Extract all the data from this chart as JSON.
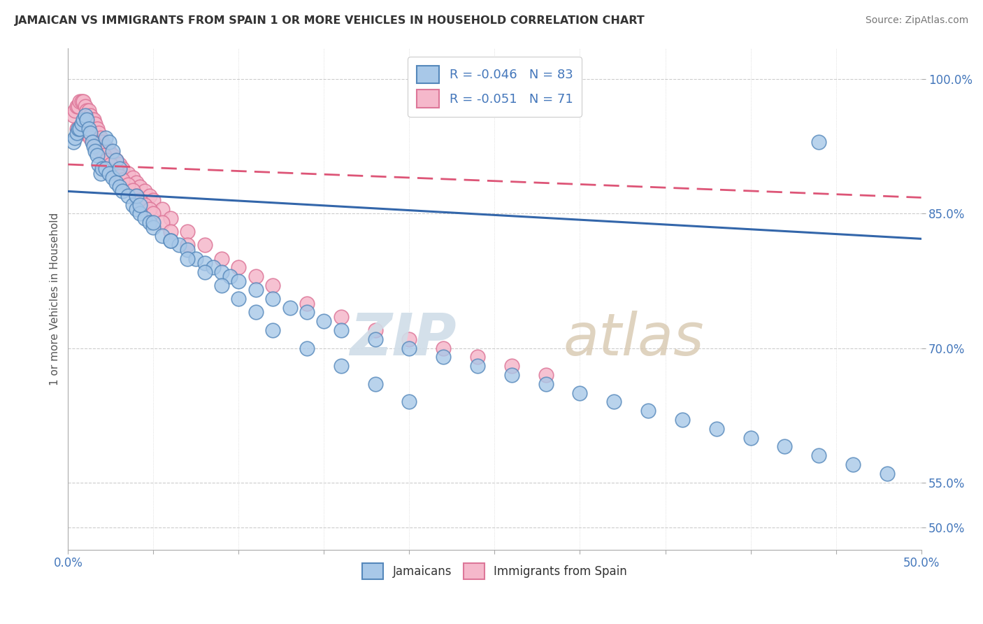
{
  "title": "JAMAICAN VS IMMIGRANTS FROM SPAIN 1 OR MORE VEHICLES IN HOUSEHOLD CORRELATION CHART",
  "source": "Source: ZipAtlas.com",
  "ylabel": "1 or more Vehicles in Household",
  "ytick_labels": [
    "50.0%",
    "55.0%",
    "70.0%",
    "85.0%",
    "100.0%"
  ],
  "ytick_values": [
    0.5,
    0.55,
    0.7,
    0.85,
    1.0
  ],
  "xlim": [
    0.0,
    0.5
  ],
  "ylim": [
    0.475,
    1.035
  ],
  "blue_R": "-0.046",
  "blue_N": "83",
  "pink_R": "-0.051",
  "pink_N": "71",
  "blue_color": "#a8c8e8",
  "pink_color": "#f5b8cb",
  "blue_edge_color": "#5588bb",
  "pink_edge_color": "#dd7799",
  "blue_line_color": "#3366aa",
  "pink_line_color": "#dd5577",
  "watermark_zip": "ZIP",
  "watermark_atlas": "atlas",
  "legend_label_blue": "Jamaicans",
  "legend_label_pink": "Immigrants from Spain",
  "blue_trend_x0": 0.0,
  "blue_trend_y0": 0.875,
  "blue_trend_x1": 0.5,
  "blue_trend_y1": 0.822,
  "pink_trend_x0": 0.0,
  "pink_trend_y0": 0.905,
  "pink_trend_x1": 0.5,
  "pink_trend_y1": 0.868,
  "blue_x": [
    0.003,
    0.004,
    0.005,
    0.006,
    0.007,
    0.008,
    0.009,
    0.01,
    0.011,
    0.012,
    0.013,
    0.014,
    0.015,
    0.016,
    0.017,
    0.018,
    0.019,
    0.02,
    0.022,
    0.024,
    0.026,
    0.028,
    0.03,
    0.032,
    0.035,
    0.038,
    0.04,
    0.042,
    0.045,
    0.048,
    0.05,
    0.055,
    0.06,
    0.065,
    0.07,
    0.075,
    0.08,
    0.085,
    0.09,
    0.095,
    0.1,
    0.11,
    0.12,
    0.13,
    0.14,
    0.15,
    0.16,
    0.18,
    0.2,
    0.22,
    0.24,
    0.26,
    0.28,
    0.3,
    0.32,
    0.34,
    0.36,
    0.38,
    0.4,
    0.42,
    0.44,
    0.46,
    0.48,
    0.022,
    0.024,
    0.026,
    0.028,
    0.03,
    0.04,
    0.042,
    0.05,
    0.06,
    0.07,
    0.08,
    0.09,
    0.1,
    0.11,
    0.12,
    0.14,
    0.16,
    0.18,
    0.2,
    0.44
  ],
  "blue_y": [
    0.93,
    0.935,
    0.94,
    0.945,
    0.945,
    0.95,
    0.955,
    0.96,
    0.955,
    0.945,
    0.94,
    0.93,
    0.925,
    0.92,
    0.915,
    0.905,
    0.895,
    0.9,
    0.9,
    0.895,
    0.89,
    0.885,
    0.88,
    0.875,
    0.87,
    0.86,
    0.855,
    0.85,
    0.845,
    0.84,
    0.835,
    0.825,
    0.82,
    0.815,
    0.81,
    0.8,
    0.795,
    0.79,
    0.785,
    0.78,
    0.775,
    0.765,
    0.755,
    0.745,
    0.74,
    0.73,
    0.72,
    0.71,
    0.7,
    0.69,
    0.68,
    0.67,
    0.66,
    0.65,
    0.64,
    0.63,
    0.62,
    0.61,
    0.6,
    0.59,
    0.58,
    0.57,
    0.56,
    0.935,
    0.93,
    0.92,
    0.91,
    0.9,
    0.87,
    0.86,
    0.84,
    0.82,
    0.8,
    0.785,
    0.77,
    0.755,
    0.74,
    0.72,
    0.7,
    0.68,
    0.66,
    0.64,
    0.93
  ],
  "pink_x": [
    0.003,
    0.004,
    0.005,
    0.006,
    0.007,
    0.008,
    0.009,
    0.01,
    0.011,
    0.012,
    0.013,
    0.014,
    0.015,
    0.016,
    0.017,
    0.018,
    0.019,
    0.02,
    0.022,
    0.024,
    0.026,
    0.028,
    0.03,
    0.032,
    0.035,
    0.038,
    0.04,
    0.042,
    0.045,
    0.048,
    0.05,
    0.055,
    0.06,
    0.07,
    0.08,
    0.09,
    0.1,
    0.11,
    0.12,
    0.14,
    0.16,
    0.18,
    0.2,
    0.22,
    0.24,
    0.26,
    0.28,
    0.005,
    0.007,
    0.009,
    0.011,
    0.013,
    0.015,
    0.017,
    0.019,
    0.021,
    0.023,
    0.025,
    0.028,
    0.03,
    0.032,
    0.035,
    0.038,
    0.04,
    0.042,
    0.045,
    0.048,
    0.05,
    0.055,
    0.06,
    0.07
  ],
  "pink_y": [
    0.96,
    0.965,
    0.97,
    0.97,
    0.975,
    0.975,
    0.975,
    0.97,
    0.965,
    0.965,
    0.96,
    0.955,
    0.955,
    0.95,
    0.945,
    0.94,
    0.935,
    0.93,
    0.925,
    0.92,
    0.915,
    0.91,
    0.905,
    0.9,
    0.895,
    0.89,
    0.885,
    0.88,
    0.875,
    0.87,
    0.865,
    0.855,
    0.845,
    0.83,
    0.815,
    0.8,
    0.79,
    0.78,
    0.77,
    0.75,
    0.735,
    0.72,
    0.71,
    0.7,
    0.69,
    0.68,
    0.67,
    0.945,
    0.945,
    0.94,
    0.94,
    0.935,
    0.93,
    0.925,
    0.92,
    0.915,
    0.91,
    0.905,
    0.898,
    0.892,
    0.888,
    0.882,
    0.876,
    0.87,
    0.865,
    0.86,
    0.855,
    0.85,
    0.84,
    0.83,
    0.815
  ]
}
